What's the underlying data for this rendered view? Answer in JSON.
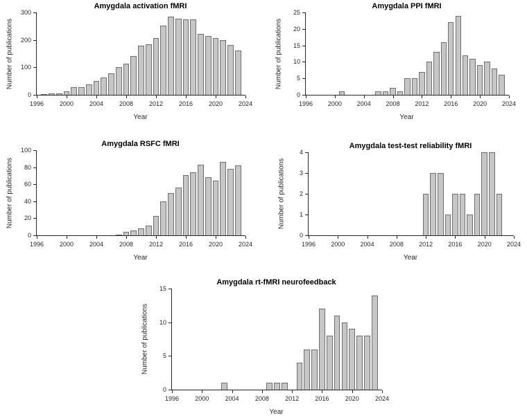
{
  "figure": {
    "background": "#ffffff",
    "bar_fill": "#c6c6c6",
    "bar_edge": "#6e6e6e",
    "axis_color": "#262626",
    "text_color": "#262626"
  },
  "chart_data": [
    {
      "type": "bar",
      "title": "Amygdala activation fMRI",
      "xlabel": "Year",
      "ylabel": "Number of publications",
      "xlim": [
        1996,
        2024
      ],
      "ylim": [
        0,
        300
      ],
      "xticks": [
        1996,
        2000,
        2004,
        2008,
        2012,
        2016,
        2020,
        2024
      ],
      "yticks": [
        0,
        100,
        200,
        300
      ],
      "grid": false,
      "years": [
        1997,
        1998,
        1999,
        2000,
        2001,
        2002,
        2003,
        2004,
        2005,
        2006,
        2007,
        2008,
        2009,
        2010,
        2011,
        2012,
        2013,
        2014,
        2015,
        2016,
        2017,
        2018,
        2019,
        2020,
        2021,
        2022,
        2023
      ],
      "values": [
        2,
        4,
        5,
        12,
        27,
        28,
        38,
        50,
        63,
        79,
        101,
        113,
        141,
        180,
        183,
        207,
        251,
        285,
        278,
        274,
        276,
        222,
        215,
        206,
        198,
        182,
        161
      ]
    },
    {
      "type": "bar",
      "title": "Amygdala PPI fMRI",
      "xlabel": "Year",
      "ylabel": "Number of publications",
      "xlim": [
        1996,
        2024
      ],
      "ylim": [
        0,
        25
      ],
      "xticks": [
        1996,
        2000,
        2004,
        2008,
        2012,
        2016,
        2020,
        2024
      ],
      "yticks": [
        0,
        5,
        10,
        15,
        20,
        25
      ],
      "grid": false,
      "years": [
        2001,
        2006,
        2007,
        2008,
        2009,
        2010,
        2011,
        2012,
        2013,
        2014,
        2015,
        2016,
        2017,
        2018,
        2019,
        2020,
        2021,
        2022,
        2023
      ],
      "values": [
        1,
        1,
        1,
        2,
        1,
        5,
        5,
        7,
        10,
        13,
        16,
        22,
        24,
        12,
        11,
        9,
        10,
        8,
        6
      ]
    },
    {
      "type": "bar",
      "title": "Amygdala RSFC fMRI",
      "xlabel": "Year",
      "ylabel": "Number of publications",
      "xlim": [
        1996,
        2024
      ],
      "ylim": [
        0,
        100
      ],
      "xticks": [
        1996,
        2000,
        2004,
        2008,
        2012,
        2016,
        2020,
        2024
      ],
      "yticks": [
        0,
        20,
        40,
        60,
        80,
        100
      ],
      "grid": false,
      "years": [
        2007,
        2008,
        2009,
        2010,
        2011,
        2012,
        2013,
        2014,
        2015,
        2016,
        2017,
        2018,
        2019,
        2020,
        2021,
        2022,
        2023
      ],
      "values": [
        1,
        4,
        6,
        8,
        11,
        23,
        40,
        50,
        56,
        71,
        74,
        83,
        68,
        64,
        86,
        78,
        82
      ]
    },
    {
      "type": "bar",
      "title": "Amygdala test-test reliability fMRI",
      "xlabel": "Year",
      "ylabel": "Number of publications",
      "xlim": [
        1996,
        2024
      ],
      "ylim": [
        0,
        4
      ],
      "xticks": [
        1996,
        2000,
        2004,
        2008,
        2012,
        2016,
        2020,
        2024
      ],
      "yticks": [
        0,
        1,
        2,
        3,
        4
      ],
      "grid": false,
      "years": [
        2012,
        2013,
        2014,
        2015,
        2016,
        2017,
        2018,
        2019,
        2020,
        2021,
        2022
      ],
      "values": [
        2,
        3,
        3,
        1,
        2,
        2,
        1,
        2,
        4,
        4,
        2
      ]
    },
    {
      "type": "bar",
      "title": "Amygdala rt-fMRI neurofeedback",
      "xlabel": "Year",
      "ylabel": "Number of publications",
      "xlim": [
        1996,
        2024
      ],
      "ylim": [
        0,
        15
      ],
      "xticks": [
        1996,
        2000,
        2004,
        2008,
        2012,
        2016,
        2020,
        2024
      ],
      "yticks": [
        0,
        5,
        10,
        15
      ],
      "grid": false,
      "years": [
        2003,
        2009,
        2010,
        2011,
        2013,
        2014,
        2015,
        2016,
        2017,
        2018,
        2019,
        2020,
        2021,
        2022,
        2023
      ],
      "values": [
        1,
        1,
        1,
        1,
        4,
        6,
        6,
        12,
        8,
        11,
        10,
        9,
        8,
        8,
        14
      ]
    }
  ]
}
